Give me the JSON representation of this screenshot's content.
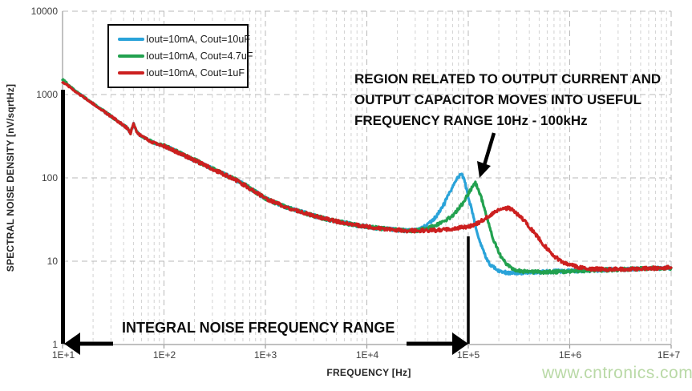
{
  "watermark": "www.cntronics.com",
  "chart_data": {
    "type": "line",
    "title": "",
    "xlabel": "FREQUENCY [Hz]",
    "ylabel": "SPECTRAL NOISE DENSITY [nV/sqrtHz]",
    "x_scale": "log",
    "y_scale": "log",
    "xlim": [
      10,
      10000000
    ],
    "ylim": [
      1,
      10000
    ],
    "x_tick_labels": [
      "1E+1",
      "1E+2",
      "1E+3",
      "1E+4",
      "1E+5",
      "1E+6",
      "1E+7"
    ],
    "y_tick_labels": [
      "10000",
      "1000",
      "100",
      "10",
      "1"
    ],
    "grid": "dashed gray major and minor log gridlines",
    "legend_position": "top-left",
    "colors": {
      "blue": "#2aa3d9",
      "green": "#22a14f",
      "red": "#cc1f1f",
      "grid": "#c3c3c3",
      "axis": "#9a9a9a",
      "annotation": "#000000"
    },
    "series": [
      {
        "name": "Iout=10mA, Cout=10uF",
        "color": "#2aa3d9",
        "points_logf_nv": [
          [
            1.0,
            1470
          ],
          [
            1.05,
            1320
          ],
          [
            1.1,
            1170
          ],
          [
            1.15,
            1050
          ],
          [
            1.2,
            950
          ],
          [
            1.25,
            860
          ],
          [
            1.3,
            780
          ],
          [
            1.35,
            705
          ],
          [
            1.4,
            640
          ],
          [
            1.45,
            580
          ],
          [
            1.5,
            525
          ],
          [
            1.55,
            475
          ],
          [
            1.6,
            430
          ],
          [
            1.64,
            395
          ],
          [
            1.67,
            345
          ],
          [
            1.7,
            450
          ],
          [
            1.73,
            360
          ],
          [
            1.76,
            330
          ],
          [
            1.8,
            305
          ],
          [
            1.85,
            282
          ],
          [
            1.9,
            264
          ],
          [
            1.95,
            252
          ],
          [
            2.0,
            243
          ],
          [
            2.1,
            213
          ],
          [
            2.2,
            187
          ],
          [
            2.3,
            164
          ],
          [
            2.4,
            143
          ],
          [
            2.5,
            125
          ],
          [
            2.6,
            110
          ],
          [
            2.7,
            96
          ],
          [
            2.8,
            82
          ],
          [
            2.9,
            68
          ],
          [
            3.0,
            57
          ],
          [
            3.1,
            50
          ],
          [
            3.2,
            45
          ],
          [
            3.3,
            41
          ],
          [
            3.4,
            37.5
          ],
          [
            3.5,
            34.5
          ],
          [
            3.6,
            32
          ],
          [
            3.7,
            30
          ],
          [
            3.8,
            28.5
          ],
          [
            3.9,
            27
          ],
          [
            4.0,
            26
          ],
          [
            4.1,
            25
          ],
          [
            4.2,
            24.3
          ],
          [
            4.3,
            23.7
          ],
          [
            4.4,
            23.2
          ],
          [
            4.5,
            23.5
          ],
          [
            4.55,
            25
          ],
          [
            4.6,
            27.5
          ],
          [
            4.65,
            31
          ],
          [
            4.7,
            37
          ],
          [
            4.75,
            46
          ],
          [
            4.8,
            60
          ],
          [
            4.85,
            80
          ],
          [
            4.9,
            103
          ],
          [
            4.93,
            112
          ],
          [
            4.96,
            95
          ],
          [
            5.0,
            60
          ],
          [
            5.04,
            38
          ],
          [
            5.08,
            24
          ],
          [
            5.12,
            16
          ],
          [
            5.17,
            11.5
          ],
          [
            5.22,
            9
          ],
          [
            5.3,
            7.6
          ],
          [
            5.4,
            7.2
          ],
          [
            5.5,
            7.2
          ],
          [
            5.7,
            7.4
          ],
          [
            5.9,
            7.6
          ],
          [
            6.1,
            7.7
          ],
          [
            6.4,
            7.9
          ],
          [
            6.7,
            8.1
          ],
          [
            7.0,
            8.3
          ]
        ]
      },
      {
        "name": "Iout=10mA, Cout=4.7uF",
        "color": "#22a14f",
        "points_logf_nv": [
          [
            1.0,
            1530
          ],
          [
            1.05,
            1340
          ],
          [
            1.1,
            1180
          ],
          [
            1.15,
            1055
          ],
          [
            1.2,
            955
          ],
          [
            1.25,
            863
          ],
          [
            1.3,
            782
          ],
          [
            1.35,
            707
          ],
          [
            1.4,
            642
          ],
          [
            1.45,
            581
          ],
          [
            1.5,
            526
          ],
          [
            1.55,
            476
          ],
          [
            1.6,
            431
          ],
          [
            1.64,
            396
          ],
          [
            1.67,
            346
          ],
          [
            1.7,
            452
          ],
          [
            1.73,
            361
          ],
          [
            1.76,
            331
          ],
          [
            1.8,
            306
          ],
          [
            1.85,
            283
          ],
          [
            1.9,
            265
          ],
          [
            1.95,
            253
          ],
          [
            2.0,
            244
          ],
          [
            2.1,
            214
          ],
          [
            2.2,
            188
          ],
          [
            2.3,
            165
          ],
          [
            2.4,
            144
          ],
          [
            2.5,
            126
          ],
          [
            2.6,
            110
          ],
          [
            2.7,
            96
          ],
          [
            2.8,
            82
          ],
          [
            2.9,
            68
          ],
          [
            3.0,
            57
          ],
          [
            3.1,
            50
          ],
          [
            3.2,
            45
          ],
          [
            3.3,
            41
          ],
          [
            3.4,
            37.5
          ],
          [
            3.5,
            34.5
          ],
          [
            3.6,
            32
          ],
          [
            3.7,
            30
          ],
          [
            3.8,
            28.5
          ],
          [
            3.9,
            27
          ],
          [
            4.0,
            26
          ],
          [
            4.1,
            25
          ],
          [
            4.2,
            24.3
          ],
          [
            4.3,
            23.7
          ],
          [
            4.4,
            23.2
          ],
          [
            4.5,
            23.4
          ],
          [
            4.6,
            24.8
          ],
          [
            4.7,
            27.5
          ],
          [
            4.8,
            32
          ],
          [
            4.85,
            36
          ],
          [
            4.9,
            42
          ],
          [
            4.95,
            51
          ],
          [
            5.0,
            64
          ],
          [
            5.04,
            79
          ],
          [
            5.07,
            86
          ],
          [
            5.1,
            74
          ],
          [
            5.14,
            52
          ],
          [
            5.18,
            34
          ],
          [
            5.22,
            23
          ],
          [
            5.27,
            15.5
          ],
          [
            5.32,
            11.5
          ],
          [
            5.38,
            9.2
          ],
          [
            5.45,
            8.0
          ],
          [
            5.55,
            7.5
          ],
          [
            5.7,
            7.4
          ],
          [
            5.9,
            7.5
          ],
          [
            6.1,
            7.7
          ],
          [
            6.4,
            7.9
          ],
          [
            6.7,
            8.1
          ],
          [
            7.0,
            8.3
          ]
        ]
      },
      {
        "name": "Iout=10mA, Cout=1uF",
        "color": "#cc1f1f",
        "points_logf_nv": [
          [
            1.0,
            1390
          ],
          [
            1.05,
            1290
          ],
          [
            1.1,
            1150
          ],
          [
            1.15,
            1040
          ],
          [
            1.2,
            945
          ],
          [
            1.25,
            856
          ],
          [
            1.3,
            777
          ],
          [
            1.35,
            703
          ],
          [
            1.4,
            638
          ],
          [
            1.45,
            578
          ],
          [
            1.5,
            524
          ],
          [
            1.55,
            474
          ],
          [
            1.6,
            429
          ],
          [
            1.64,
            394
          ],
          [
            1.67,
            344
          ],
          [
            1.7,
            448
          ],
          [
            1.73,
            359
          ],
          [
            1.76,
            329
          ],
          [
            1.8,
            304
          ],
          [
            1.85,
            281
          ],
          [
            1.9,
            263
          ],
          [
            1.95,
            251
          ],
          [
            2.0,
            242
          ],
          [
            2.1,
            212
          ],
          [
            2.2,
            186
          ],
          [
            2.3,
            163
          ],
          [
            2.4,
            142
          ],
          [
            2.5,
            124
          ],
          [
            2.6,
            109
          ],
          [
            2.7,
            95
          ],
          [
            2.8,
            81
          ],
          [
            2.9,
            68
          ],
          [
            3.0,
            57
          ],
          [
            3.1,
            50
          ],
          [
            3.2,
            45
          ],
          [
            3.3,
            41
          ],
          [
            3.4,
            37.5
          ],
          [
            3.5,
            34.5
          ],
          [
            3.6,
            32
          ],
          [
            3.7,
            30
          ],
          [
            3.8,
            28.5
          ],
          [
            3.9,
            27
          ],
          [
            4.0,
            26
          ],
          [
            4.1,
            25
          ],
          [
            4.2,
            24.3
          ],
          [
            4.3,
            23.7
          ],
          [
            4.4,
            23.3
          ],
          [
            4.5,
            23.2
          ],
          [
            4.6,
            23.3
          ],
          [
            4.7,
            23.5
          ],
          [
            4.8,
            24
          ],
          [
            4.9,
            25
          ],
          [
            5.0,
            26
          ],
          [
            5.05,
            27.2
          ],
          [
            5.1,
            29
          ],
          [
            5.15,
            31.5
          ],
          [
            5.2,
            34.5
          ],
          [
            5.25,
            38
          ],
          [
            5.3,
            41.5
          ],
          [
            5.35,
            43.5
          ],
          [
            5.4,
            43
          ],
          [
            5.45,
            40
          ],
          [
            5.5,
            35.5
          ],
          [
            5.55,
            30.5
          ],
          [
            5.6,
            26
          ],
          [
            5.65,
            22
          ],
          [
            5.7,
            18.5
          ],
          [
            5.75,
            15.5
          ],
          [
            5.8,
            13.2
          ],
          [
            5.85,
            11.5
          ],
          [
            5.9,
            10.3
          ],
          [
            5.95,
            9.5
          ],
          [
            6.0,
            9.0
          ],
          [
            6.1,
            8.4
          ],
          [
            6.2,
            8.1
          ],
          [
            6.35,
            8.0
          ],
          [
            6.5,
            8.0
          ],
          [
            6.7,
            8.1
          ],
          [
            7.0,
            8.4
          ]
        ]
      }
    ],
    "annotations": {
      "region_note": {
        "lines": [
          "REGION RELATED TO OUTPUT CURRENT AND",
          "OUTPUT CAPACITOR MOVES INTO USEFUL",
          "FREQUENCY RANGE 10Hz - 100kHz"
        ],
        "arrow_points_to": "green curve resonance peak near 100kHz"
      },
      "integral_note": {
        "text": "INTEGRAL NOISE FREQUENCY RANGE",
        "range_hz": [
          10,
          100000
        ]
      }
    }
  }
}
